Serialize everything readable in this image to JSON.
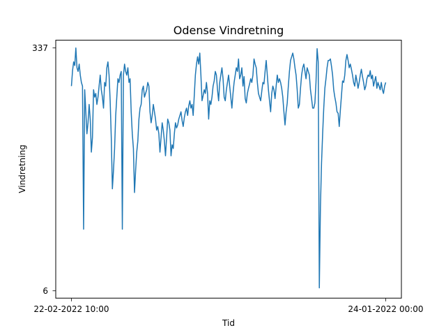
{
  "chart_data": {
    "type": "line",
    "title": "Odense Vindretning",
    "xlabel": "Tid",
    "ylabel": "Vindretning",
    "x_tick_labels": [
      "22-02-2022 10:00",
      "24-01-2022 00:00"
    ],
    "y_ticks": [
      6,
      337
    ],
    "ylim": [
      6,
      337
    ],
    "grid": false,
    "line_color": "#1f77b4",
    "series": [
      {
        "values": [
          285,
          306,
          318,
          313,
          337,
          310,
          305,
          315,
          300,
          290,
          285,
          90,
          280,
          250,
          220,
          235,
          260,
          240,
          195,
          215,
          280,
          270,
          275,
          260,
          270,
          285,
          300,
          280,
          270,
          255,
          290,
          285,
          310,
          318,
          300,
          265,
          215,
          145,
          170,
          200,
          245,
          270,
          295,
          290,
          300,
          305,
          90,
          300,
          315,
          305,
          300,
          310,
          290,
          295,
          250,
          220,
          200,
          140,
          170,
          195,
          210,
          240,
          255,
          260,
          280,
          285,
          270,
          275,
          280,
          290,
          285,
          250,
          235,
          245,
          260,
          250,
          240,
          225,
          230,
          220,
          195,
          215,
          235,
          225,
          210,
          190,
          215,
          240,
          235,
          225,
          190,
          205,
          200,
          220,
          235,
          228,
          232,
          240,
          245,
          250,
          238,
          230,
          242,
          250,
          255,
          245,
          258,
          265,
          255,
          260,
          245,
          272,
          300,
          315,
          325,
          315,
          330,
          300,
          265,
          272,
          280,
          275,
          290,
          275,
          240,
          265,
          260,
          270,
          285,
          292,
          305,
          300,
          280,
          265,
          290,
          300,
          310,
          295,
          270,
          265,
          280,
          290,
          300,
          285,
          270,
          255,
          275,
          290,
          300,
          310,
          305,
          322,
          295,
          300,
          310,
          285,
          298,
          268,
          262,
          275,
          282,
          288,
          295,
          290,
          300,
          322,
          315,
          310,
          290,
          275,
          270,
          265,
          278,
          290,
          288,
          305,
          320,
          300,
          280,
          265,
          250,
          275,
          285,
          280,
          268,
          285,
          300,
          290,
          295,
          290,
          282,
          270,
          250,
          232,
          250,
          262,
          285,
          305,
          320,
          325,
          330,
          322,
          310,
          300,
          280,
          255,
          260,
          282,
          300,
          310,
          315,
          305,
          295,
          310,
          305,
          300,
          280,
          268,
          255,
          255,
          262,
          290,
          336,
          318,
          10,
          120,
          180,
          220,
          255,
          282,
          295,
          310,
          320,
          320,
          322,
          312,
          300,
          280,
          270,
          262,
          250,
          248,
          230,
          252,
          272,
          292,
          290,
          300,
          320,
          328,
          320,
          310,
          315,
          308,
          300,
          290,
          285,
          300,
          292,
          282,
          290,
          300,
          308,
          298,
          290,
          280,
          285,
          295,
          300,
          298,
          306,
          295,
          300,
          285,
          292,
          298,
          282,
          290,
          285,
          280,
          290,
          280,
          275,
          285,
          290
        ]
      }
    ]
  }
}
